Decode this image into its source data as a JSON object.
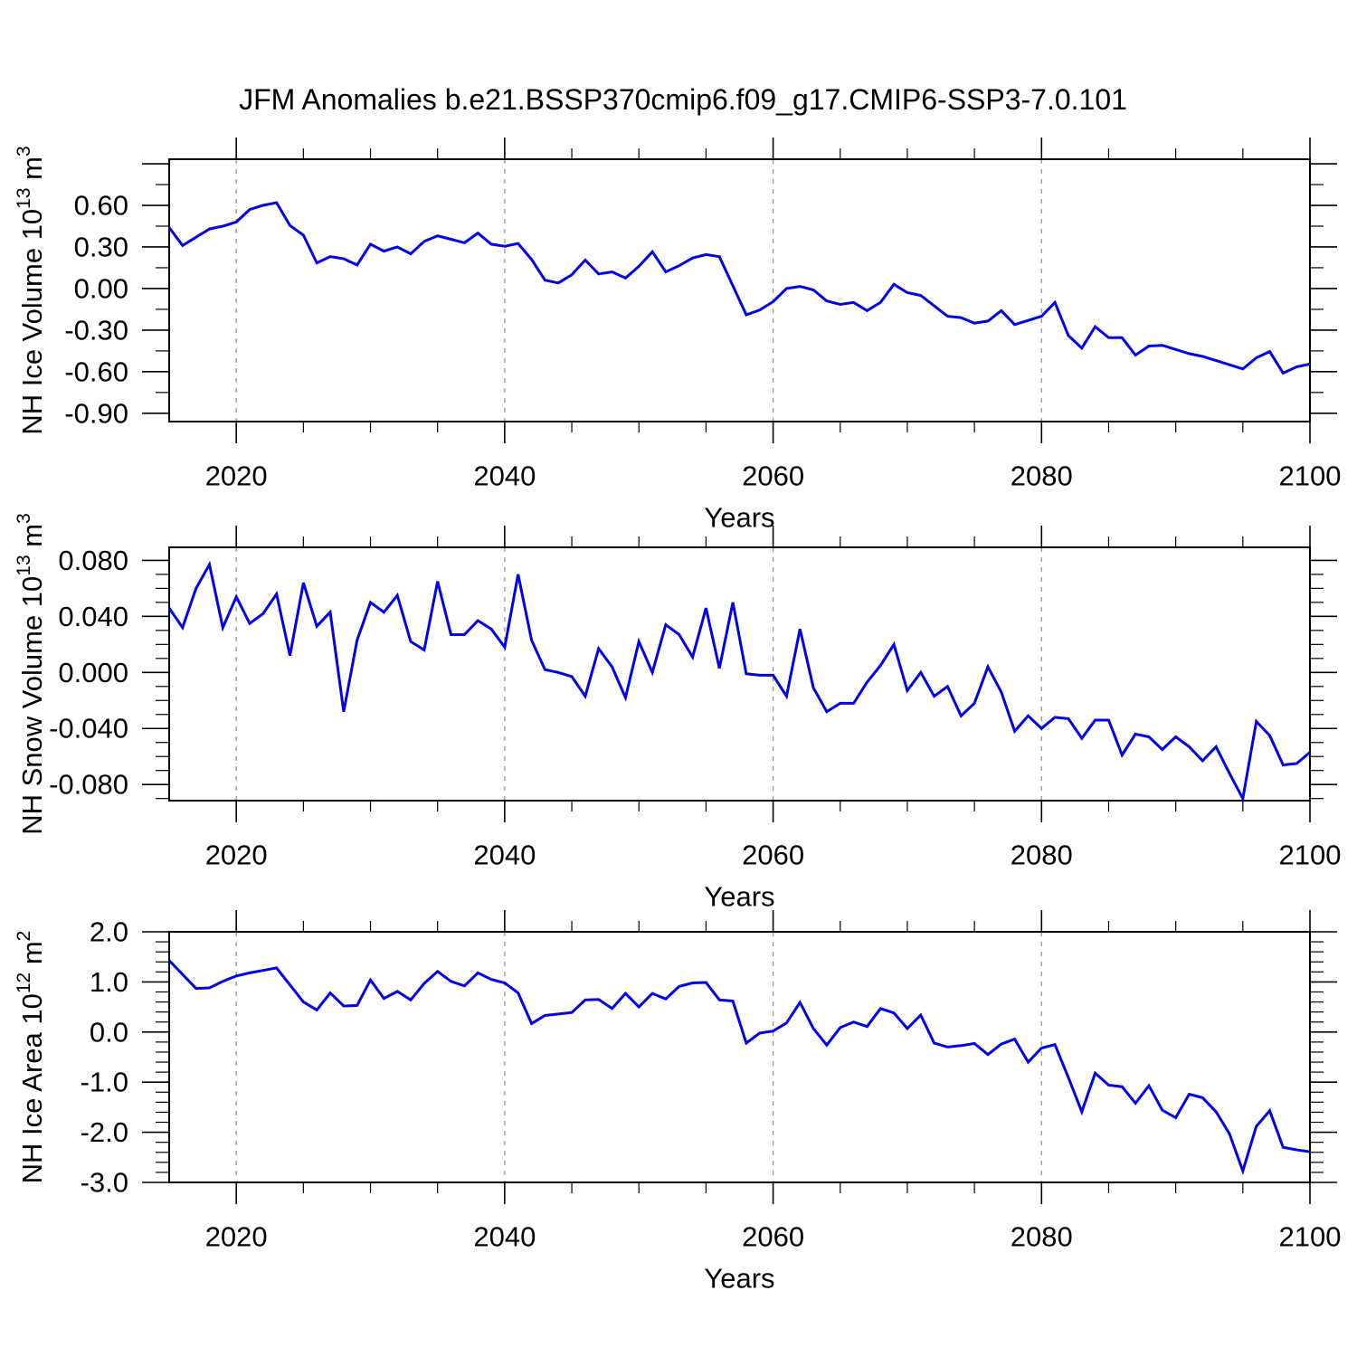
{
  "title": "JFM Anomalies b.e21.BSSP370cmip6.f09_g17.CMIP6-SSP3-7.0.101",
  "line_color": "#0000ee",
  "grid_color": "#999999",
  "axis_color": "#000000",
  "chart_data": [
    {
      "type": "line",
      "title": "",
      "xlabel": "Years",
      "ylabel_segments": [
        [
          "t",
          "NH Ice Volume 10"
        ],
        [
          "s",
          "13"
        ],
        [
          "t",
          " m"
        ],
        [
          "s",
          "3"
        ]
      ],
      "x_start": 2015,
      "x_end": 2100,
      "x_step": 1,
      "xticks": [
        2020,
        2040,
        2060,
        2080,
        2100
      ],
      "xtick_labels": [
        "2020",
        "2040",
        "2060",
        "2080",
        "2100"
      ],
      "x_minor_step": 5,
      "grid_years": [
        2020,
        2040,
        2060,
        2080
      ],
      "grid_dashed": true,
      "ylim": [
        -0.96,
        0.933
      ],
      "y_majors": [
        0.9,
        0.6,
        0.3,
        0.0,
        -0.3,
        -0.6,
        -0.9
      ],
      "y_major_labels": [
        "",
        "0.60",
        "0.30",
        "0.00",
        "-0.30",
        "-0.60",
        "-0.90"
      ],
      "y_minor_step": 0.15,
      "values": [
        0.44,
        0.31,
        0.37,
        0.43,
        0.45,
        0.48,
        0.57,
        0.6,
        0.62,
        0.455,
        0.385,
        0.185,
        0.23,
        0.215,
        0.17,
        0.32,
        0.27,
        0.3,
        0.25,
        0.34,
        0.38,
        0.355,
        0.33,
        0.4,
        0.32,
        0.305,
        0.325,
        0.21,
        0.06,
        0.04,
        0.1,
        0.205,
        0.105,
        0.12,
        0.075,
        0.16,
        0.265,
        0.12,
        0.165,
        0.22,
        0.245,
        0.23,
        0.02,
        -0.19,
        -0.155,
        -0.095,
        0.0,
        0.015,
        -0.01,
        -0.09,
        -0.115,
        -0.1,
        -0.16,
        -0.1,
        0.03,
        -0.03,
        -0.05,
        -0.125,
        -0.2,
        -0.21,
        -0.25,
        -0.235,
        -0.16,
        -0.26,
        -0.23,
        -0.2,
        -0.1,
        -0.34,
        -0.43,
        -0.275,
        -0.355,
        -0.355,
        -0.48,
        -0.415,
        -0.41,
        -0.44,
        -0.47,
        -0.49,
        -0.52,
        -0.55,
        -0.58,
        -0.5,
        -0.455,
        -0.61,
        -0.565,
        -0.545
      ]
    },
    {
      "type": "line",
      "title": "",
      "xlabel": "Years",
      "ylabel_segments": [
        [
          "t",
          "NH Snow Volume 10"
        ],
        [
          "s",
          "13"
        ],
        [
          "t",
          " m"
        ],
        [
          "s",
          "3"
        ]
      ],
      "x_start": 2015,
      "x_end": 2100,
      "x_step": 1,
      "xticks": [
        2020,
        2040,
        2060,
        2080,
        2100
      ],
      "xtick_labels": [
        "2020",
        "2040",
        "2060",
        "2080",
        "2100"
      ],
      "x_minor_step": 5,
      "grid_years": [
        2020,
        2040,
        2060,
        2080
      ],
      "grid_dashed": true,
      "ylim": [
        -0.0915,
        0.0893
      ],
      "y_majors": [
        0.08,
        0.04,
        0.0,
        -0.04,
        -0.08
      ],
      "y_major_labels": [
        "0.080",
        "0.040",
        "0.000",
        "-0.040",
        "-0.080"
      ],
      "y_minor_step": 0.01,
      "values": [
        0.046,
        0.032,
        0.06,
        0.077,
        0.032,
        0.054,
        0.035,
        0.042,
        0.056,
        0.012,
        0.064,
        0.033,
        0.043,
        -0.028,
        0.023,
        0.05,
        0.043,
        0.055,
        0.022,
        0.016,
        0.065,
        0.027,
        0.027,
        0.037,
        0.031,
        0.018,
        0.07,
        0.023,
        0.002,
        0.0,
        -0.003,
        -0.017,
        0.017,
        0.004,
        -0.018,
        0.022,
        0.0,
        0.034,
        0.027,
        0.011,
        0.046,
        0.003,
        0.05,
        -0.001,
        -0.002,
        -0.002,
        -0.017,
        0.031,
        -0.011,
        -0.028,
        -0.022,
        -0.022,
        -0.007,
        0.005,
        0.02,
        -0.013,
        0.0,
        -0.017,
        -0.01,
        -0.031,
        -0.022,
        0.004,
        -0.014,
        -0.042,
        -0.031,
        -0.04,
        -0.032,
        -0.033,
        -0.047,
        -0.034,
        -0.034,
        -0.059,
        -0.044,
        -0.046,
        -0.055,
        -0.046,
        -0.053,
        -0.063,
        -0.053,
        -0.072,
        -0.09,
        -0.035,
        -0.045,
        -0.066,
        -0.065,
        -0.057
      ]
    },
    {
      "type": "line",
      "title": "",
      "xlabel": "Years",
      "ylabel_segments": [
        [
          "t",
          "NH Ice Area 10"
        ],
        [
          "s",
          "12"
        ],
        [
          "t",
          " m"
        ],
        [
          "s",
          "2"
        ]
      ],
      "x_start": 2015,
      "x_end": 2100,
      "x_step": 1,
      "xticks": [
        2020,
        2040,
        2060,
        2080,
        2100
      ],
      "xtick_labels": [
        "2020",
        "2040",
        "2060",
        "2080",
        "2100"
      ],
      "x_minor_step": 5,
      "grid_years": [
        2020,
        2040,
        2060,
        2080
      ],
      "grid_dashed": true,
      "ylim": [
        -3.0,
        2.0
      ],
      "y_majors": [
        2.0,
        1.0,
        0.0,
        -1.0,
        -2.0,
        -3.0
      ],
      "y_major_labels": [
        "2.0",
        "1.0",
        "0.0",
        "-1.0",
        "-2.0",
        "-3.0"
      ],
      "y_minor_step": 0.2,
      "values": [
        1.43,
        1.15,
        0.87,
        0.88,
        1.01,
        1.12,
        1.18,
        1.23,
        1.28,
        0.94,
        0.6,
        0.44,
        0.78,
        0.52,
        0.53,
        1.04,
        0.67,
        0.81,
        0.64,
        0.97,
        1.21,
        1.01,
        0.92,
        1.18,
        1.05,
        0.98,
        0.78,
        0.17,
        0.33,
        0.36,
        0.39,
        0.64,
        0.65,
        0.47,
        0.77,
        0.5,
        0.77,
        0.66,
        0.91,
        0.98,
        0.99,
        0.64,
        0.62,
        -0.22,
        -0.02,
        0.02,
        0.18,
        0.59,
        0.07,
        -0.26,
        0.09,
        0.2,
        0.11,
        0.47,
        0.38,
        0.07,
        0.34,
        -0.22,
        -0.3,
        -0.27,
        -0.23,
        -0.45,
        -0.24,
        -0.14,
        -0.6,
        -0.32,
        -0.25,
        -0.91,
        -1.59,
        -0.82,
        -1.06,
        -1.09,
        -1.42,
        -1.07,
        -1.56,
        -1.71,
        -1.24,
        -1.31,
        -1.59,
        -2.03,
        -2.77,
        -1.88,
        -1.57,
        -2.3,
        -2.35,
        -2.39
      ]
    }
  ]
}
